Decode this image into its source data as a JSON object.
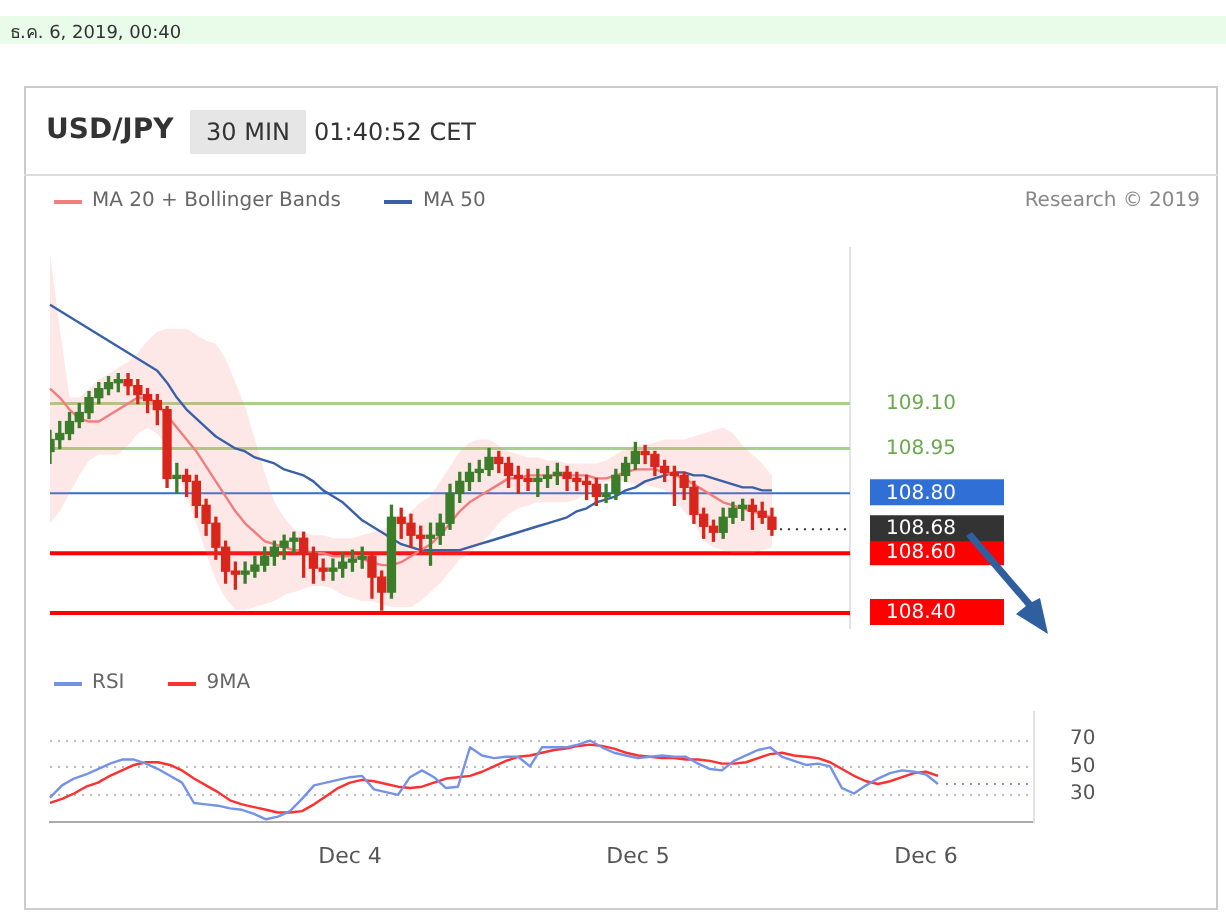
{
  "chart_data": [
    {
      "type": "candlestick",
      "title": "USD/JPY",
      "subtitle": "30 MIN",
      "annotations": [
        "ธ.ค. 6, 2019, 00:40",
        "01:40:52 CET",
        "Research © 2019"
      ],
      "categories": [
        null,
        null,
        null,
        null,
        null,
        null,
        null,
        null,
        null,
        null,
        null,
        null,
        null,
        null,
        null,
        null,
        null,
        null,
        null,
        null,
        null,
        null,
        null,
        null,
        null,
        null,
        null,
        null,
        null,
        null,
        null,
        null,
        null,
        null,
        null,
        null,
        null,
        null,
        null,
        null,
        null,
        null,
        null,
        null,
        null,
        null,
        null,
        null,
        null,
        null,
        null,
        null,
        null,
        null,
        null,
        null,
        null,
        null,
        null,
        null,
        null,
        null,
        null,
        null,
        null,
        null,
        null,
        null,
        null,
        null,
        null,
        null,
        null,
        null,
        null,
        null,
        null,
        null,
        null,
        null,
        null,
        null,
        null
      ],
      "ohlc": [
        [
          108.94,
          109.01,
          108.9,
          108.98
        ],
        [
          108.98,
          109.04,
          108.95,
          109.0
        ],
        [
          109.0,
          109.07,
          108.98,
          109.04
        ],
        [
          109.04,
          109.1,
          109.02,
          109.07
        ],
        [
          109.07,
          109.14,
          109.05,
          109.12
        ],
        [
          109.12,
          109.17,
          109.1,
          109.15
        ],
        [
          109.15,
          109.19,
          109.13,
          109.17
        ],
        [
          109.17,
          109.2,
          109.14,
          109.18
        ],
        [
          109.18,
          109.2,
          109.13,
          109.16
        ],
        [
          109.16,
          109.18,
          109.1,
          109.13
        ],
        [
          109.13,
          109.15,
          109.07,
          109.11
        ],
        [
          109.11,
          109.13,
          109.03,
          109.08
        ],
        [
          109.08,
          109.09,
          108.82,
          108.85
        ],
        [
          108.85,
          108.9,
          108.8,
          108.86
        ],
        [
          108.86,
          108.88,
          108.79,
          108.84
        ],
        [
          108.84,
          108.86,
          108.72,
          108.76
        ],
        [
          108.76,
          108.78,
          108.66,
          108.7
        ],
        [
          108.7,
          108.72,
          108.58,
          108.62
        ],
        [
          108.62,
          108.64,
          108.5,
          108.54
        ],
        [
          108.54,
          108.57,
          108.48,
          108.53
        ],
        [
          108.53,
          108.57,
          108.5,
          108.54
        ],
        [
          108.54,
          108.59,
          108.52,
          108.56
        ],
        [
          108.56,
          108.62,
          108.54,
          108.59
        ],
        [
          108.59,
          108.64,
          108.56,
          108.62
        ],
        [
          108.62,
          108.66,
          108.58,
          108.64
        ],
        [
          108.64,
          108.67,
          108.6,
          108.65
        ],
        [
          108.65,
          108.67,
          108.52,
          108.6
        ],
        [
          108.6,
          108.62,
          108.5,
          108.55
        ],
        [
          108.55,
          108.58,
          108.51,
          108.54
        ],
        [
          108.54,
          108.58,
          108.51,
          108.55
        ],
        [
          108.55,
          108.6,
          108.52,
          108.57
        ],
        [
          108.57,
          108.61,
          108.54,
          108.58
        ],
        [
          108.58,
          108.62,
          108.55,
          108.59
        ],
        [
          108.59,
          108.6,
          108.45,
          108.52
        ],
        [
          108.52,
          108.54,
          108.41,
          108.47
        ],
        [
          108.47,
          108.76,
          108.45,
          108.72
        ],
        [
          108.72,
          108.75,
          108.65,
          108.7
        ],
        [
          108.7,
          108.73,
          108.62,
          108.66
        ],
        [
          108.66,
          108.69,
          108.6,
          108.65
        ],
        [
          108.65,
          108.7,
          108.56,
          108.66
        ],
        [
          108.66,
          108.73,
          108.63,
          108.7
        ],
        [
          108.7,
          108.83,
          108.68,
          108.8
        ],
        [
          108.8,
          108.87,
          108.77,
          108.84
        ],
        [
          108.84,
          108.9,
          108.81,
          108.87
        ],
        [
          108.87,
          108.91,
          108.84,
          108.88
        ],
        [
          108.88,
          108.95,
          108.86,
          108.92
        ],
        [
          108.92,
          108.94,
          108.87,
          108.9
        ],
        [
          108.9,
          108.92,
          108.82,
          108.86
        ],
        [
          108.86,
          108.89,
          108.8,
          108.85
        ],
        [
          108.85,
          108.88,
          108.81,
          108.84
        ],
        [
          108.84,
          108.88,
          108.79,
          108.85
        ],
        [
          108.85,
          108.89,
          108.82,
          108.86
        ],
        [
          108.86,
          108.9,
          108.83,
          108.87
        ],
        [
          108.87,
          108.89,
          108.81,
          108.85
        ],
        [
          108.85,
          108.87,
          108.81,
          108.84
        ],
        [
          108.84,
          108.86,
          108.78,
          108.83
        ],
        [
          108.83,
          108.85,
          108.76,
          108.79
        ],
        [
          108.79,
          108.83,
          108.77,
          108.8
        ],
        [
          108.8,
          108.88,
          108.78,
          108.86
        ],
        [
          108.86,
          108.92,
          108.84,
          108.9
        ],
        [
          108.9,
          108.97,
          108.88,
          108.94
        ],
        [
          108.94,
          108.96,
          108.9,
          108.93
        ],
        [
          108.93,
          108.94,
          108.86,
          108.89
        ],
        [
          108.89,
          108.91,
          108.84,
          108.87
        ],
        [
          108.87,
          108.89,
          108.76,
          108.86
        ],
        [
          108.86,
          108.87,
          108.78,
          108.82
        ],
        [
          108.82,
          108.84,
          108.7,
          108.73
        ],
        [
          108.73,
          108.75,
          108.65,
          108.69
        ],
        [
          108.69,
          108.71,
          108.64,
          108.67
        ],
        [
          108.67,
          108.75,
          108.65,
          108.72
        ],
        [
          108.72,
          108.77,
          108.7,
          108.75
        ],
        [
          108.75,
          108.78,
          108.71,
          108.76
        ],
        [
          108.76,
          108.78,
          108.68,
          108.74
        ],
        [
          108.74,
          108.77,
          108.7,
          108.72
        ],
        [
          108.72,
          108.75,
          108.66,
          108.68
        ],
        null,
        null,
        null,
        null,
        null,
        null,
        null,
        null
      ],
      "series": [
        {
          "name": "MA 20 + Bollinger Bands",
          "type": "line",
          "color": "#f47c7c",
          "values": [
            109.15,
            109.12,
            109.08,
            109.05,
            109.04,
            109.04,
            109.06,
            109.08,
            109.1,
            109.12,
            109.12,
            109.1,
            109.06,
            109.02,
            108.98,
            108.94,
            108.89,
            108.84,
            108.79,
            108.74,
            108.7,
            108.67,
            108.64,
            108.63,
            108.62,
            108.61,
            108.61,
            108.6,
            108.6,
            108.59,
            108.59,
            108.59,
            108.58,
            108.57,
            108.56,
            108.56,
            108.57,
            108.59,
            108.61,
            108.63,
            108.66,
            108.7,
            108.74,
            108.77,
            108.79,
            108.81,
            108.83,
            108.85,
            108.85,
            108.86,
            108.86,
            108.86,
            108.86,
            108.86,
            108.86,
            108.86,
            108.85,
            108.85,
            108.86,
            108.87,
            108.88,
            108.88,
            108.88,
            108.87,
            108.86,
            108.85,
            108.83,
            108.81,
            108.79,
            108.77,
            108.76,
            108.75,
            108.74,
            108.73,
            108.72,
            null,
            null,
            null,
            null,
            null,
            null,
            null,
            null
          ],
          "upper": [
            109.6,
            109.35,
            109.12,
            109.12,
            109.15,
            109.18,
            109.2,
            109.22,
            109.24,
            109.27,
            109.31,
            109.34,
            109.35,
            109.35,
            109.35,
            109.33,
            109.31,
            109.3,
            109.25,
            109.17,
            109.09,
            108.98,
            108.87,
            108.77,
            108.72,
            108.68,
            108.67,
            108.66,
            108.66,
            108.65,
            108.65,
            108.65,
            108.66,
            108.67,
            108.68,
            108.69,
            108.71,
            108.74,
            108.77,
            108.79,
            108.84,
            108.89,
            108.94,
            108.97,
            108.98,
            108.98,
            108.96,
            108.94,
            108.93,
            108.92,
            108.92,
            108.91,
            108.91,
            108.9,
            108.9,
            108.9,
            108.9,
            108.91,
            108.93,
            108.95,
            108.96,
            108.96,
            108.97,
            108.98,
            108.98,
            108.98,
            108.99,
            109.0,
            109.01,
            109.02,
            109.0,
            108.96,
            108.93,
            108.9,
            108.86,
            null,
            null,
            null,
            null,
            null,
            null,
            null,
            null
          ],
          "lower": [
            108.7,
            108.74,
            108.8,
            108.86,
            108.91,
            108.93,
            108.93,
            108.93,
            108.96,
            109.0,
            109.02,
            109.0,
            108.96,
            108.88,
            108.79,
            108.7,
            108.6,
            108.51,
            108.45,
            108.41,
            108.41,
            108.42,
            108.43,
            108.44,
            108.46,
            108.47,
            108.48,
            108.49,
            108.49,
            108.48,
            108.46,
            108.45,
            108.44,
            108.44,
            108.43,
            108.42,
            108.42,
            108.42,
            108.44,
            108.47,
            108.5,
            108.54,
            108.58,
            108.6,
            108.63,
            108.66,
            108.7,
            108.73,
            108.75,
            108.76,
            108.77,
            108.77,
            108.77,
            108.77,
            108.78,
            108.8,
            108.82,
            108.84,
            108.84,
            108.84,
            108.83,
            108.83,
            108.82,
            108.81,
            108.78,
            108.74,
            108.7,
            108.64,
            108.62,
            108.61,
            108.6,
            108.6,
            108.6,
            108.61,
            108.62,
            null,
            null,
            null,
            null,
            null,
            null,
            null,
            null
          ]
        },
        {
          "name": "MA 50",
          "type": "line",
          "color": "#3a60a8",
          "values": [
            109.43,
            109.41,
            109.39,
            109.37,
            109.35,
            109.33,
            109.31,
            109.29,
            109.27,
            109.25,
            109.23,
            109.21,
            109.17,
            109.12,
            109.08,
            109.05,
            109.02,
            108.99,
            108.97,
            108.95,
            108.94,
            108.92,
            108.91,
            108.9,
            108.88,
            108.87,
            108.86,
            108.84,
            108.81,
            108.79,
            108.77,
            108.74,
            108.71,
            108.69,
            108.67,
            108.65,
            108.63,
            108.62,
            108.61,
            108.61,
            108.61,
            108.61,
            108.61,
            108.62,
            108.63,
            108.64,
            108.65,
            108.66,
            108.67,
            108.68,
            108.69,
            108.7,
            108.71,
            108.72,
            108.74,
            108.75,
            108.77,
            108.78,
            108.79,
            108.81,
            108.82,
            108.84,
            108.85,
            108.86,
            108.87,
            108.87,
            108.86,
            108.86,
            108.85,
            108.84,
            108.83,
            108.82,
            108.82,
            108.81,
            108.81,
            null,
            null,
            null,
            null,
            null,
            null,
            null,
            null
          ]
        }
      ],
      "ylim": [
        108.35,
        109.62
      ],
      "yticks": [
        {
          "value": 108.4,
          "label": "108.40"
        },
        {
          "value": 108.6,
          "label": "108.60"
        },
        {
          "value": 108.68,
          "label": "108.68"
        },
        {
          "value": 108.8,
          "label": "108.80"
        },
        {
          "value": 108.95,
          "label": "108.95"
        },
        {
          "value": 109.1,
          "label": "109.10"
        }
      ],
      "tick_labels": "y",
      "legend": "top left",
      "ref_lines": [
        {
          "axis": "y",
          "value": 109.1,
          "color": "#a9d18e"
        },
        {
          "axis": "y",
          "value": 108.95,
          "color": "#a9d18e"
        },
        {
          "axis": "y",
          "value": 108.8,
          "color": "#2f6fd6"
        },
        {
          "axis": "y",
          "value": 108.68,
          "color": "#333333",
          "line_style": "dotted"
        },
        {
          "axis": "y",
          "value": 108.6,
          "color": "#ff0000"
        },
        {
          "axis": "y",
          "value": 108.4,
          "color": "#ff0000"
        }
      ]
    },
    {
      "type": "line",
      "categories": [
        null,
        null,
        null,
        null,
        null,
        null,
        null,
        null,
        null,
        null,
        null,
        null,
        null,
        null,
        null,
        null,
        null,
        null,
        null,
        null,
        null,
        null,
        null,
        null,
        null,
        "Dec 4",
        null,
        null,
        null,
        null,
        null,
        null,
        null,
        null,
        null,
        null,
        null,
        null,
        null,
        null,
        null,
        null,
        null,
        null,
        null,
        null,
        null,
        null,
        null,
        "Dec 5",
        null,
        null,
        null,
        null,
        null,
        null,
        null,
        null,
        null,
        null,
        null,
        null,
        null,
        null,
        null,
        null,
        null,
        null,
        null,
        null,
        null,
        null,
        null,
        "Dec 6",
        null,
        null,
        null,
        null,
        null,
        null,
        null,
        null,
        null
      ],
      "series": [
        {
          "name": "RSI",
          "color": "#7593e6",
          "values": [
            27,
            36,
            41,
            44,
            48,
            52,
            55,
            55,
            52,
            48,
            43,
            38,
            23,
            22,
            21,
            19,
            18,
            15,
            11,
            13,
            17,
            26,
            36,
            38,
            40,
            42,
            43,
            33,
            31,
            29,
            42,
            47,
            42,
            34,
            35,
            64,
            58,
            56,
            57,
            57,
            50,
            64,
            64,
            64,
            66,
            69,
            64,
            60,
            58,
            56,
            57,
            58,
            57,
            57,
            52,
            48,
            47,
            54,
            58,
            62,
            64,
            57,
            54,
            51,
            52,
            50,
            34,
            30,
            36,
            41,
            45,
            47,
            46,
            44,
            37,
            null,
            null,
            null,
            null,
            null,
            null,
            null,
            null
          ]
        },
        {
          "name": "9MA",
          "color": "#ff3030",
          "values": [
            23,
            26,
            30,
            35,
            38,
            43,
            47,
            51,
            53,
            53,
            51,
            47,
            41,
            36,
            31,
            25,
            22,
            20,
            18,
            16,
            16,
            17,
            22,
            28,
            34,
            38,
            40,
            39,
            37,
            35,
            34,
            35,
            38,
            41,
            42,
            43,
            46,
            50,
            54,
            57,
            58,
            60,
            62,
            63,
            65,
            66,
            65,
            63,
            60,
            58,
            57,
            56,
            56,
            55,
            55,
            54,
            52,
            52,
            53,
            56,
            59,
            60,
            58,
            57,
            56,
            53,
            48,
            43,
            39,
            37,
            39,
            42,
            45,
            46,
            43,
            null,
            null,
            null,
            null,
            null,
            null,
            null,
            null
          ]
        }
      ],
      "ylim": [
        9,
        90
      ],
      "yticks": [
        30,
        50,
        70
      ],
      "grid": "y",
      "legend": "top left",
      "ref_lines": [
        {
          "axis": "y",
          "value": 37,
          "color": "#7593e6",
          "line_style": "dotted"
        }
      ]
    }
  ]
}
